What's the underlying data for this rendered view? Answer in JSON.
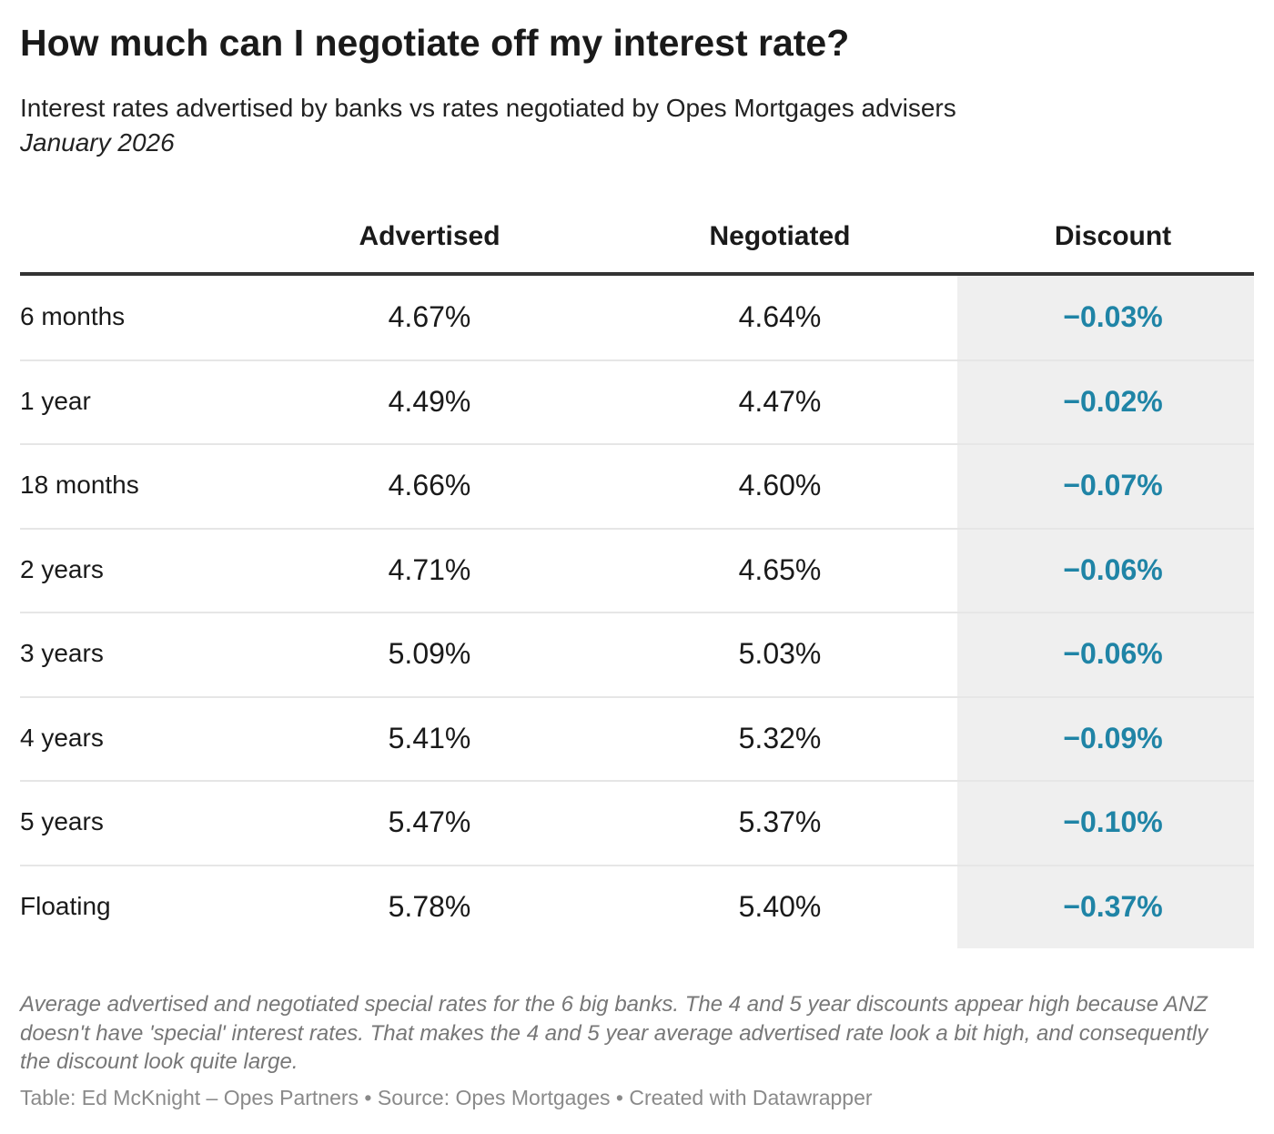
{
  "header": {
    "title": "How much can I negotiate off my interest rate?",
    "subtitle": "Interest rates advertised by banks vs rates negotiated by Opes Mortgages advisers",
    "date": "January 2026"
  },
  "table": {
    "columns": [
      "Advertised",
      "Negotiated",
      "Discount"
    ],
    "rows": [
      [
        "6 months",
        "4.67%",
        "4.64%",
        "−0.03%"
      ],
      [
        "1 year",
        "4.49%",
        "4.47%",
        "−0.02%"
      ],
      [
        "18 months",
        "4.66%",
        "4.60%",
        "−0.07%"
      ],
      [
        "2 years",
        "4.71%",
        "4.65%",
        "−0.06%"
      ],
      [
        "3 years",
        "5.09%",
        "5.03%",
        "−0.06%"
      ],
      [
        "4 years",
        "5.41%",
        "5.32%",
        "−0.09%"
      ],
      [
        "5 years",
        "5.47%",
        "5.37%",
        "−0.10%"
      ],
      [
        "Floating",
        "5.78%",
        "5.40%",
        "−0.37%"
      ]
    ]
  },
  "footer": {
    "notes": "Average advertised and negotiated special rates for the 6 big banks. The 4 and 5 year discounts appear high because ANZ doesn't have 'special' interest rates. That makes the 4 and 5 year average advertised rate look a bit high, and consequently the discount look quite large.",
    "credit": "Table: Ed McKnight – Opes Partners • Source: Opes Mortgages • Created with Datawrapper"
  }
}
